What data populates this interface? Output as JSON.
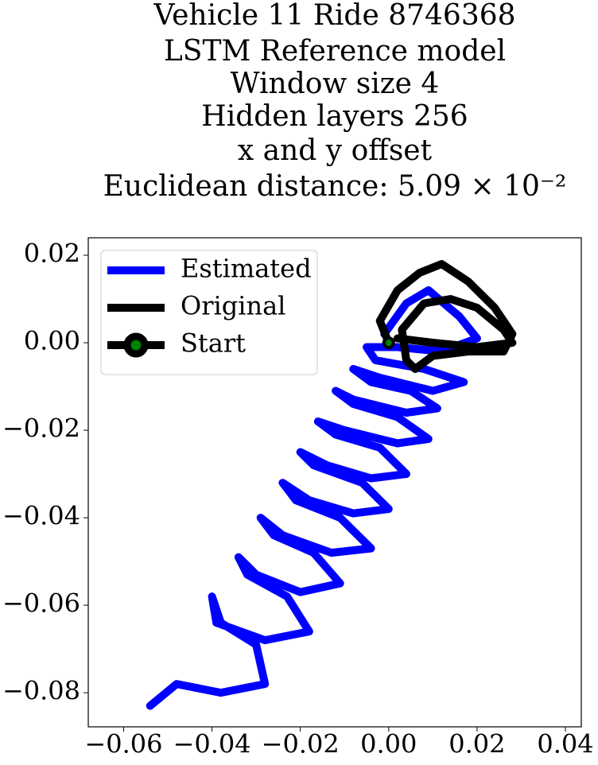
{
  "chart_data": {
    "type": "line",
    "title": [
      "Vehicle 11 Ride 8746368",
      "LSTM Reference model",
      "Window size 4",
      "Hidden layers 256",
      "x and y offset",
      "Euclidean distance: 5.09 × 10⁻²"
    ],
    "xlim": [
      -0.068,
      0.0436
    ],
    "ylim": [
      -0.0878,
      0.024
    ],
    "xticks": [
      {
        "value": -0.06,
        "label": "−0.06"
      },
      {
        "value": -0.04,
        "label": "−0.04"
      },
      {
        "value": -0.02,
        "label": "−0.02"
      },
      {
        "value": 0,
        "label": "0.00"
      },
      0.02,
      0.04
    ],
    "yticks": [
      0.02,
      {
        "value": 0,
        "label": "0.00"
      },
      {
        "value": -0.02,
        "label": "−0.02"
      },
      {
        "value": -0.04,
        "label": "−0.04"
      },
      {
        "value": -0.06,
        "label": "−0.06"
      },
      {
        "value": -0.08,
        "label": "−0.08"
      }
    ],
    "legend": "upper left",
    "series": [
      {
        "name": "Estimated",
        "color": "#0000ff",
        "x": [
          -0.001,
          0.004,
          0.009,
          0.016,
          0.02,
          0.012,
          0.002,
          -0.005,
          -0.003,
          0.008,
          0.017,
          0.01,
          -0.002,
          -0.008,
          -0.004,
          0.005,
          0.011,
          0.004,
          -0.008,
          -0.012,
          -0.008,
          0.002,
          0.009,
          0.002,
          -0.01,
          -0.016,
          -0.012,
          -0.002,
          0.004,
          -0.004,
          -0.014,
          -0.02,
          -0.017,
          -0.006,
          0.0,
          -0.008,
          -0.018,
          -0.024,
          -0.021,
          -0.011,
          -0.004,
          -0.013,
          -0.024,
          -0.029,
          -0.026,
          -0.017,
          -0.011,
          -0.02,
          -0.03,
          -0.034,
          -0.032,
          -0.023,
          -0.018,
          -0.028,
          -0.039,
          -0.04,
          -0.038,
          -0.03,
          -0.028,
          -0.038,
          -0.048,
          -0.054
        ],
        "values": [
          0.002,
          0.009,
          0.012,
          0.006,
          0.001,
          -0.002,
          -0.001,
          -0.001,
          -0.004,
          -0.006,
          -0.009,
          -0.011,
          -0.008,
          -0.006,
          -0.009,
          -0.011,
          -0.015,
          -0.016,
          -0.013,
          -0.011,
          -0.014,
          -0.017,
          -0.022,
          -0.023,
          -0.02,
          -0.018,
          -0.021,
          -0.024,
          -0.03,
          -0.031,
          -0.028,
          -0.025,
          -0.028,
          -0.032,
          -0.038,
          -0.039,
          -0.036,
          -0.032,
          -0.036,
          -0.04,
          -0.047,
          -0.048,
          -0.044,
          -0.04,
          -0.044,
          -0.048,
          -0.055,
          -0.057,
          -0.053,
          -0.049,
          -0.053,
          -0.058,
          -0.066,
          -0.068,
          -0.064,
          -0.058,
          -0.064,
          -0.069,
          -0.078,
          -0.08,
          -0.078,
          -0.083
        ]
      },
      {
        "name": "Original",
        "color": "#000000",
        "x": [
          0,
          -0.002,
          0.002,
          0.007,
          0.012,
          0.018,
          0.024,
          0.028,
          0.026,
          0.018,
          0.01,
          0.006,
          0.004,
          0.003,
          0.008,
          0.014,
          0.02,
          0.026,
          0.028,
          0.02,
          0.01,
          0.002
        ],
        "values": [
          0,
          0.005,
          0.012,
          0.016,
          0.018,
          0.014,
          0.008,
          0.002,
          -0.002,
          -0.002,
          -0.003,
          -0.006,
          -0.004,
          0.003,
          0.009,
          0.01,
          0.008,
          0.003,
          0,
          -0.001,
          0,
          0.001
        ]
      },
      {
        "name": "Start",
        "color": "#008000",
        "edgecolor": "#000000",
        "marker": "circle",
        "x": [
          0
        ],
        "values": [
          0
        ]
      }
    ]
  }
}
